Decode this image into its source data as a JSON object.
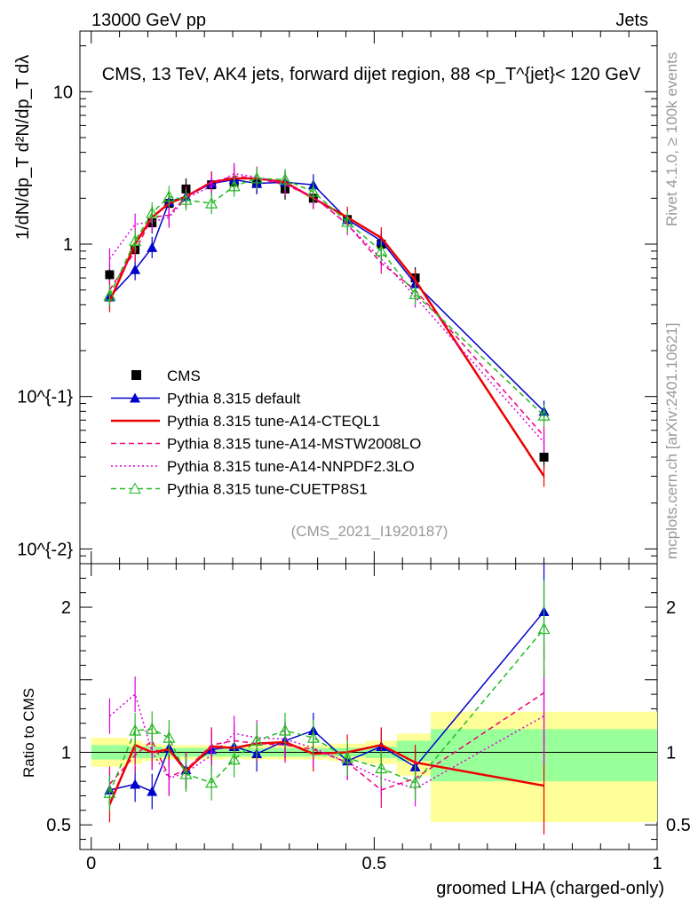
{
  "header": {
    "left": "13000 GeV pp",
    "right": "Jets",
    "rivet": "Rivet 4.1.0, ≥ 100k events",
    "mcplots": "mcplots.cern.ch [arXiv:2401.10621]",
    "analysis": "(CMS_2021_I1920187)"
  },
  "chart_data": [
    {
      "type": "line",
      "title": "CMS, 13 TeV, AK4 jets, forward dijet region, 88 <p_T^{jet}< 120 GeV",
      "ylabel": "1/dN/dp_T  d²N/dp_T dλ",
      "yscale": "log",
      "ylim": [
        0.008,
        25
      ],
      "xlim": [
        -0.02,
        1.0
      ],
      "ytick_labels": [
        "10^{-2}",
        "10^{-1}",
        "1",
        "10"
      ],
      "x": [
        0.0325,
        0.0775,
        0.1075,
        0.1375,
        0.1675,
        0.2125,
        0.2525,
        0.2925,
        0.3425,
        0.3925,
        0.4525,
        0.5125,
        0.5725,
        0.8
      ],
      "series": [
        {
          "name": "CMS",
          "color": "#000000",
          "style": "data",
          "values": [
            0.63,
            0.92,
            1.38,
            1.85,
            2.3,
            2.45,
            2.55,
            2.5,
            2.3,
            2.0,
            1.45,
            1.0,
            0.6,
            0.04
          ]
        },
        {
          "name": "Pythia 8.315 default",
          "color": "#0000cc",
          "style": "solid-tri",
          "values": [
            0.45,
            0.68,
            0.95,
            1.9,
            2.05,
            2.5,
            2.65,
            2.5,
            2.55,
            2.45,
            1.45,
            1.05,
            0.55,
            0.08
          ]
        },
        {
          "name": "Pythia 8.315 tune-A14-CTEQL1",
          "color": "#ee0000",
          "style": "thick",
          "values": [
            0.42,
            1.0,
            1.5,
            1.85,
            2.05,
            2.55,
            2.7,
            2.7,
            2.55,
            2.0,
            1.5,
            1.1,
            0.58,
            0.03
          ]
        },
        {
          "name": "Pythia 8.315 tune-A14-MSTW2008LO",
          "color": "#ee0077",
          "style": "dashed",
          "values": [
            0.5,
            0.9,
            1.5,
            1.55,
            2.05,
            2.55,
            2.8,
            2.7,
            2.45,
            2.05,
            1.35,
            0.75,
            0.5,
            0.055
          ]
        },
        {
          "name": "Pythia 8.315 tune-A14-NNPDF2.3LO",
          "color": "#dd00dd",
          "style": "dotted",
          "values": [
            0.8,
            1.35,
            1.4,
            1.5,
            2.0,
            2.4,
            2.9,
            2.75,
            2.5,
            2.05,
            1.35,
            0.8,
            0.45,
            0.05
          ]
        },
        {
          "name": "Pythia 8.315 tune-CUETP8S1",
          "color": "#22bb22",
          "style": "dashed-tri",
          "values": [
            0.46,
            1.05,
            1.6,
            2.05,
            1.95,
            1.85,
            2.4,
            2.7,
            2.65,
            2.2,
            1.4,
            0.9,
            0.47,
            0.075
          ]
        }
      ]
    },
    {
      "type": "line",
      "title": "",
      "ylabel": "Ratio to CMS",
      "xlabel": "groomed LHA (charged-only)",
      "ylim": [
        0.33,
        2.3
      ],
      "xlim": [
        -0.02,
        1.0
      ],
      "ytick_labels": [
        "0.5",
        "1",
        "2"
      ],
      "xtick_labels": [
        "0",
        "0.5",
        "1"
      ],
      "x": [
        0.0325,
        0.0775,
        0.1075,
        0.1375,
        0.1675,
        0.2125,
        0.2525,
        0.2925,
        0.3425,
        0.3925,
        0.4525,
        0.5125,
        0.5725,
        0.8
      ],
      "bands": {
        "x_edges": [
          0.0,
          0.065,
          0.09,
          0.125,
          0.15,
          0.185,
          0.24,
          0.265,
          0.32,
          0.365,
          0.42,
          0.485,
          0.54,
          0.6,
          1.0
        ],
        "stat_low": [
          0.95,
          0.96,
          0.96,
          0.97,
          0.97,
          0.97,
          0.97,
          0.97,
          0.97,
          0.97,
          0.97,
          0.96,
          0.94,
          0.8
        ],
        "stat_high": [
          1.05,
          1.04,
          1.04,
          1.03,
          1.03,
          1.03,
          1.03,
          1.03,
          1.03,
          1.03,
          1.03,
          1.04,
          1.08,
          1.16
        ],
        "tot_low": [
          0.9,
          0.92,
          0.94,
          0.95,
          0.95,
          0.95,
          0.96,
          0.95,
          0.95,
          0.95,
          0.94,
          0.92,
          0.84,
          0.52
        ],
        "tot_high": [
          1.1,
          1.08,
          1.06,
          1.05,
          1.05,
          1.05,
          1.04,
          1.05,
          1.05,
          1.05,
          1.06,
          1.08,
          1.13,
          1.28
        ]
      },
      "series": [
        {
          "name": "Pythia 8.315 default",
          "color": "#0000cc",
          "values": [
            0.74,
            0.78,
            0.73,
            1.03,
            0.88,
            1.02,
            1.04,
            0.99,
            1.08,
            1.15,
            0.94,
            1.04,
            0.9,
            1.97
          ]
        },
        {
          "name": "Pythia 8.315 tune-A14-CTEQL1",
          "color": "#ee0000",
          "values": [
            0.64,
            1.05,
            1.0,
            1.02,
            0.87,
            1.04,
            1.03,
            1.06,
            1.07,
            0.99,
            1.0,
            1.05,
            0.93,
            0.77
          ]
        },
        {
          "name": "Pythia 8.315 tune-A14-MSTW2008LO",
          "color": "#ee0077",
          "values": [
            0.78,
            0.98,
            1.08,
            0.83,
            0.88,
            1.05,
            1.08,
            1.06,
            1.05,
            1.02,
            0.93,
            0.74,
            0.82,
            1.41
          ]
        },
        {
          "name": "Pythia 8.315 tune-A14-NNPDF2.3LO",
          "color": "#dd00dd",
          "values": [
            1.25,
            1.4,
            1.0,
            0.82,
            0.86,
            0.98,
            1.13,
            1.1,
            1.09,
            1.03,
            0.93,
            0.82,
            0.75,
            1.25
          ]
        },
        {
          "name": "Pythia 8.315 tune-CUETP8S1",
          "color": "#22bb22",
          "values": [
            0.72,
            1.15,
            1.16,
            1.1,
            0.85,
            0.79,
            0.95,
            1.08,
            1.15,
            1.1,
            0.96,
            0.89,
            0.79,
            1.85
          ]
        }
      ]
    }
  ]
}
